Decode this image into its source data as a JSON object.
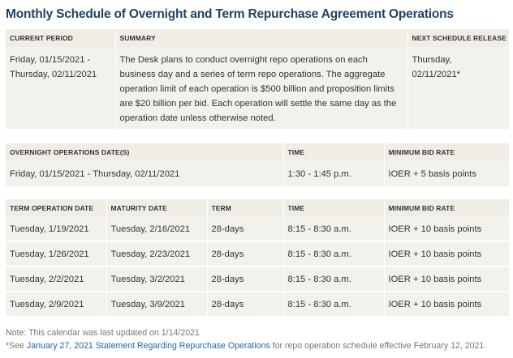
{
  "title": "Monthly Schedule of Overnight and Term Repurchase Agreement Operations",
  "current": {
    "headers": {
      "period": "CURRENT PERIOD",
      "summary": "SUMMARY",
      "next": "NEXT SCHEDULE RELEASE"
    },
    "period_line1": "Friday, 01/15/2021 -",
    "period_line2": "Thursday, 02/11/2021",
    "summary": "The Desk plans to conduct overnight repo operations on each business day and a series of term repo operations. The aggregate operation limit of each operation is $500 billion and proposition limits are $20 billion per bid. Each operation will settle the same day as the operation date unless otherwise noted.",
    "next_line1": "Thursday,",
    "next_line2": "02/11/2021*"
  },
  "overnight": {
    "headers": {
      "dates": "OVERNIGHT OPERATIONS DATE(S)",
      "time": "TIME",
      "rate": "MINIMUM BID RATE"
    },
    "dates": "Friday, 01/15/2021 - Thursday, 02/11/2021",
    "time": "1:30 - 1:45 p.m.",
    "rate": "IOER + 5 basis points"
  },
  "term": {
    "headers": {
      "op_date": "TERM OPERATION DATE",
      "maturity": "MATURITY DATE",
      "term": "TERM",
      "time": "TIME",
      "rate": "MINIMUM BID RATE"
    },
    "rows": [
      {
        "op_date": "Tuesday, 1/19/2021",
        "maturity": "Tuesday, 2/16/2021",
        "term": "28-days",
        "time": "8:15 - 8:30 a.m.",
        "rate": "IOER + 10 basis points"
      },
      {
        "op_date": "Tuesday, 1/26/2021",
        "maturity": "Tuesday, 2/23/2021",
        "term": "28-days",
        "time": "8:15 - 8:30 a.m.",
        "rate": "IOER + 10 basis points"
      },
      {
        "op_date": "Tuesday, 2/2/2021",
        "maturity": "Tuesday, 3/2/2021",
        "term": "28-days",
        "time": "8:15 - 8:30 a.m.",
        "rate": "IOER + 10 basis points"
      },
      {
        "op_date": "Tuesday, 2/9/2021",
        "maturity": "Tuesday, 3/9/2021",
        "term": "28-days",
        "time": "8:15 - 8:30 a.m.",
        "rate": "IOER + 10 basis points"
      }
    ]
  },
  "notes": {
    "updated": "Note: This calendar was last updated on 1/14/2021",
    "see_prefix": "*See ",
    "link_text": "January 27, 2021 Statement Regarding Repurchase Operations",
    "see_suffix": " for repo operation schedule effective February 12, 2021."
  }
}
